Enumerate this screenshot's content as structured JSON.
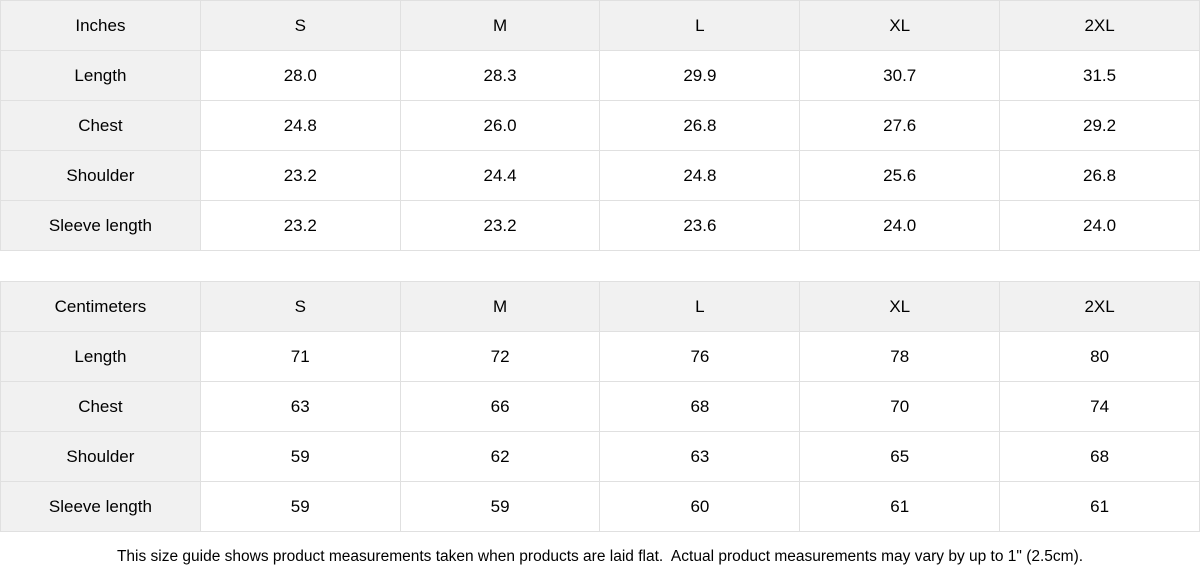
{
  "colors": {
    "header_fill": "#f1f1f1",
    "border": "#e0e0e0",
    "text": "#000000",
    "cell_bg": "#ffffff"
  },
  "tables": [
    {
      "unit_label": "Inches",
      "sizes": [
        "S",
        "M",
        "L",
        "XL",
        "2XL"
      ],
      "rows": [
        {
          "label": "Length",
          "values": [
            "28.0",
            "28.3",
            "29.9",
            "30.7",
            "31.5"
          ]
        },
        {
          "label": "Chest",
          "values": [
            "24.8",
            "26.0",
            "26.8",
            "27.6",
            "29.2"
          ]
        },
        {
          "label": "Shoulder",
          "values": [
            "23.2",
            "24.4",
            "24.8",
            "25.6",
            "26.8"
          ]
        },
        {
          "label": "Sleeve length",
          "values": [
            "23.2",
            "23.2",
            "23.6",
            "24.0",
            "24.0"
          ]
        }
      ]
    },
    {
      "unit_label": "Centimeters",
      "sizes": [
        "S",
        "M",
        "L",
        "XL",
        "2XL"
      ],
      "rows": [
        {
          "label": "Length",
          "values": [
            "71",
            "72",
            "76",
            "78",
            "80"
          ]
        },
        {
          "label": "Chest",
          "values": [
            "63",
            "66",
            "68",
            "70",
            "74"
          ]
        },
        {
          "label": "Shoulder",
          "values": [
            "59",
            "62",
            "63",
            "65",
            "68"
          ]
        },
        {
          "label": "Sleeve length",
          "values": [
            "59",
            "59",
            "60",
            "61",
            "61"
          ]
        }
      ]
    }
  ],
  "footer": {
    "note": "This size guide shows product measurements taken when products are laid flat.  Actual product measurements may vary by up to 1\" (2.5cm)."
  }
}
